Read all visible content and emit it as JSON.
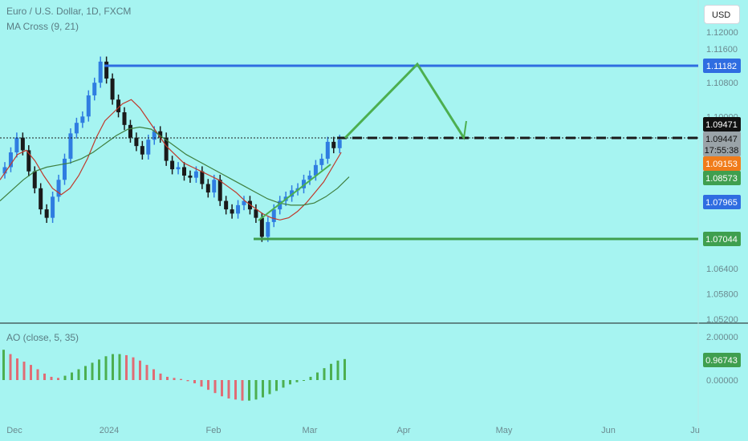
{
  "header": {
    "title": "Euro / U.S. Dollar, 1D, FXCM",
    "ma_title": "MA Cross (9, 21)",
    "currency_button": "USD"
  },
  "oscillator": {
    "title": "AO (close, 5, 35)",
    "value_label": "0.96743",
    "y_ticks": [
      "2.00000",
      "0.00000"
    ]
  },
  "colors": {
    "background": "#a6f4f1",
    "candle_up": "#2f7de1",
    "candle_down": "#1a1a1a",
    "resistance": "#2f6de1",
    "support": "#3f9f4f",
    "projection": "#4caf50",
    "ma_fast": "#c0392b",
    "ma_slow": "#3f7f3f",
    "ao_up": "#4caf50",
    "ao_down": "#e06c75"
  },
  "badges": {
    "resistance": "1.11182",
    "current": "1.09471",
    "last_price": "1.09447",
    "countdown": "17:55:38",
    "ma_fast": "1.09153",
    "ma_slow": "1.08573",
    "level_blue": "1.07965",
    "support": "1.07044"
  },
  "chart_data": {
    "type": "candlestick",
    "title": "Euro / U.S. Dollar, 1D, FXCM",
    "x_tick_labels": [
      "Dec",
      "2024",
      "Feb",
      "Mar",
      "Apr",
      "May",
      "Jun",
      "Ju"
    ],
    "y_tick_labels": [
      "1.12000",
      "1.11600",
      "1.10800",
      "1.10000",
      "1.06400",
      "1.05800",
      "1.05200"
    ],
    "y_ticks": [
      1.12,
      1.116,
      1.108,
      1.1,
      1.064,
      1.058,
      1.052
    ],
    "ylim": [
      1.052,
      1.124
    ],
    "candles_close": [
      1.088,
      1.0915,
      1.095,
      1.092,
      1.087,
      1.083,
      1.078,
      1.076,
      1.081,
      1.085,
      1.09,
      1.096,
      1.0985,
      1.1,
      1.105,
      1.108,
      1.113,
      1.109,
      1.104,
      1.101,
      1.098,
      1.095,
      1.093,
      1.091,
      1.0945,
      1.0965,
      1.095,
      1.0895,
      1.0875,
      1.088,
      1.086,
      1.0855,
      1.087,
      1.084,
      1.082,
      1.085,
      1.08,
      1.078,
      1.077,
      1.079,
      1.08,
      1.078,
      1.076,
      1.0715,
      1.075,
      1.078,
      1.08,
      1.081,
      1.0825,
      1.083,
      1.085,
      1.086,
      1.0885,
      1.09,
      1.094,
      1.0925,
      1.0945
    ],
    "ma_fast": [
      1.085,
      1.088,
      1.091,
      1.092,
      1.0895,
      1.086,
      1.083,
      1.0815,
      1.083,
      1.086,
      1.09,
      1.095,
      1.099,
      1.101,
      1.103,
      1.104,
      1.102,
      1.099,
      1.096,
      1.093,
      1.091,
      1.089,
      1.088,
      1.087,
      1.086,
      1.085,
      1.0835,
      1.082,
      1.08,
      1.0785,
      1.077,
      1.076,
      1.0755,
      1.076,
      1.0775,
      1.0795,
      1.082,
      1.0845,
      1.088,
      1.0915
    ],
    "ma_slow": [
      1.08,
      1.0825,
      1.085,
      1.087,
      1.088,
      1.0885,
      1.089,
      1.09,
      1.0915,
      1.0935,
      1.0955,
      1.097,
      1.0975,
      1.097,
      1.095,
      1.093,
      1.091,
      1.0895,
      1.088,
      1.0865,
      1.085,
      1.0835,
      1.082,
      1.0805,
      1.0795,
      1.079,
      1.079,
      1.0795,
      1.081,
      1.083,
      1.0857
    ],
    "levels": {
      "resistance": 1.11182,
      "current": 1.09471,
      "support": 1.07044
    },
    "ao_values": [
      1.4,
      1.2,
      1.0,
      0.85,
      0.7,
      0.5,
      0.3,
      0.15,
      0.1,
      0.2,
      0.35,
      0.5,
      0.65,
      0.8,
      0.95,
      1.1,
      1.2,
      1.2,
      1.15,
      1.05,
      0.9,
      0.7,
      0.5,
      0.3,
      0.15,
      0.1,
      0.05,
      -0.05,
      -0.15,
      -0.3,
      -0.45,
      -0.6,
      -0.75,
      -0.85,
      -0.9,
      -0.95,
      -0.95,
      -0.9,
      -0.8,
      -0.65,
      -0.5,
      -0.35,
      -0.2,
      -0.1,
      0.0,
      0.15,
      0.35,
      0.55,
      0.75,
      0.9,
      0.97
    ]
  }
}
